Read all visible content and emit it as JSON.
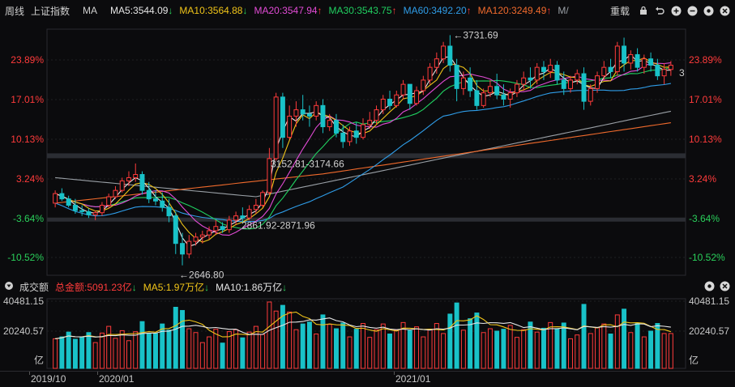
{
  "toolbar": {
    "period": "周线",
    "index_name": "上证指数",
    "ma_label": "MA",
    "ma": [
      {
        "label": "MA5:3544.09",
        "arrow": "↓",
        "cls": "ma5",
        "arrow_cls": "dn"
      },
      {
        "label": "MA10:3564.88",
        "arrow": "↓",
        "cls": "ma10",
        "arrow_cls": "dn"
      },
      {
        "label": "MA20:3547.94",
        "arrow": "↑",
        "cls": "ma20",
        "arrow_cls": "up"
      },
      {
        "label": "MA30:3543.75",
        "arrow": "↑",
        "cls": "ma30",
        "arrow_cls": "up"
      },
      {
        "label": "MA60:3492.20",
        "arrow": "↑",
        "cls": "ma60",
        "arrow_cls": "up"
      },
      {
        "label": "MA120:3249.49",
        "arrow": "↑",
        "cls": "ma120",
        "arrow_cls": "up"
      },
      {
        "label": "M/",
        "arrow": "",
        "cls": "ma250",
        "arrow_cls": "up"
      }
    ],
    "reset_label": "重载"
  },
  "price_axis": {
    "ticks": [
      "23.89%",
      "17.01%",
      "10.13%",
      "3.24%",
      "-3.64%",
      "-10.52%"
    ],
    "tick_colors": [
      "#ff3b3b",
      "#ff3b3b",
      "#ff3b3b",
      "#ff3b3b",
      "#2ad05b",
      "#2ad05b"
    ]
  },
  "annotations": {
    "high": "3731.69",
    "low": "2646.80",
    "gap_upper": "3152.81-3174.66",
    "gap_lower": "2861.92-2871.96",
    "last_marker": "3"
  },
  "volume": {
    "label": "成交额",
    "total": "总金额:5091.23亿",
    "total_arrow": "↓",
    "ma5": "MA5:1.97万亿",
    "ma5_arrow": "↓",
    "ma10": "MA10:1.86万亿",
    "ma10_arrow": "↓",
    "ticks": [
      "40481.15",
      "20240.57",
      "亿"
    ]
  },
  "x_axis": {
    "labels": [
      "2019/10",
      "2020/01",
      "2021/01"
    ]
  },
  "colors": {
    "up": "#ff3b3b",
    "down": "#19c2c8",
    "ma5": "#e6e6e6",
    "ma10": "#f0c419",
    "ma20": "#e24bd6",
    "ma30": "#20d060",
    "ma60": "#2f9de8",
    "ma120": "#f06a2c",
    "ma250": "#9aa0a6"
  },
  "chart_data": {
    "type": "candlestick",
    "weekly_ohlc": [
      [
        2940,
        3000,
        2920,
        2985
      ],
      [
        2985,
        3010,
        2950,
        2960
      ],
      [
        2960,
        2975,
        2920,
        2930
      ],
      [
        2930,
        2960,
        2890,
        2905
      ],
      [
        2905,
        2930,
        2880,
        2900
      ],
      [
        2900,
        2915,
        2870,
        2885
      ],
      [
        2885,
        2905,
        2860,
        2895
      ],
      [
        2895,
        2945,
        2880,
        2930
      ],
      [
        2930,
        2985,
        2915,
        2970
      ],
      [
        2970,
        3020,
        2960,
        3000
      ],
      [
        3000,
        3060,
        2990,
        3045
      ],
      [
        3045,
        3090,
        3020,
        3060
      ],
      [
        3060,
        3127,
        3040,
        3075
      ],
      [
        3075,
        3090,
        2980,
        3000
      ],
      [
        3000,
        3040,
        2940,
        2960
      ],
      [
        2960,
        3000,
        2930,
        2950
      ],
      [
        2950,
        2990,
        2900,
        2920
      ],
      [
        2920,
        2960,
        2850,
        2880
      ],
      [
        2880,
        2900,
        2700,
        2750
      ],
      [
        2750,
        2800,
        2646.8,
        2700
      ],
      [
        2700,
        2790,
        2680,
        2760
      ],
      [
        2760,
        2800,
        2740,
        2780
      ],
      [
        2780,
        2810,
        2750,
        2790
      ],
      [
        2790,
        2830,
        2770,
        2810
      ],
      [
        2810,
        2860,
        2790,
        2830
      ],
      [
        2830,
        2850,
        2800,
        2815
      ],
      [
        2815,
        2880,
        2800,
        2860
      ],
      [
        2860,
        2900,
        2840,
        2880
      ],
      [
        2880,
        2920,
        2850,
        2870
      ],
      [
        2870,
        2930,
        2860,
        2910
      ],
      [
        2910,
        2960,
        2890,
        2930
      ],
      [
        2930,
        3000,
        2920,
        2990
      ],
      [
        2990,
        3200,
        2980,
        3150
      ],
      [
        3150,
        3460,
        3140,
        3440
      ],
      [
        3440,
        3460,
        3200,
        3250
      ],
      [
        3250,
        3400,
        3240,
        3350
      ],
      [
        3350,
        3420,
        3300,
        3380
      ],
      [
        3380,
        3450,
        3330,
        3360
      ],
      [
        3360,
        3400,
        3300,
        3350
      ],
      [
        3350,
        3420,
        3330,
        3400
      ],
      [
        3400,
        3430,
        3270,
        3300
      ],
      [
        3300,
        3360,
        3280,
        3330
      ],
      [
        3330,
        3360,
        3250,
        3270
      ],
      [
        3270,
        3310,
        3200,
        3230
      ],
      [
        3230,
        3300,
        3210,
        3280
      ],
      [
        3280,
        3320,
        3220,
        3250
      ],
      [
        3250,
        3340,
        3240,
        3310
      ],
      [
        3310,
        3370,
        3290,
        3330
      ],
      [
        3330,
        3400,
        3310,
        3380
      ],
      [
        3380,
        3450,
        3360,
        3430
      ],
      [
        3430,
        3470,
        3380,
        3400
      ],
      [
        3400,
        3470,
        3390,
        3450
      ],
      [
        3450,
        3520,
        3430,
        3500
      ],
      [
        3500,
        3480,
        3380,
        3410
      ],
      [
        3410,
        3490,
        3400,
        3470
      ],
      [
        3470,
        3540,
        3450,
        3520
      ],
      [
        3520,
        3600,
        3500,
        3580
      ],
      [
        3580,
        3650,
        3550,
        3620
      ],
      [
        3620,
        3700,
        3600,
        3680
      ],
      [
        3680,
        3731.69,
        3560,
        3590
      ],
      [
        3590,
        3620,
        3420,
        3480
      ],
      [
        3480,
        3560,
        3450,
        3530
      ],
      [
        3530,
        3580,
        3440,
        3470
      ],
      [
        3470,
        3520,
        3380,
        3400
      ],
      [
        3400,
        3480,
        3390,
        3460
      ],
      [
        3460,
        3520,
        3440,
        3490
      ],
      [
        3490,
        3550,
        3430,
        3450
      ],
      [
        3450,
        3500,
        3400,
        3430
      ],
      [
        3430,
        3480,
        3390,
        3460
      ],
      [
        3460,
        3520,
        3440,
        3500
      ],
      [
        3500,
        3560,
        3470,
        3530
      ],
      [
        3530,
        3580,
        3480,
        3520
      ],
      [
        3520,
        3600,
        3500,
        3580
      ],
      [
        3580,
        3610,
        3520,
        3560
      ],
      [
        3560,
        3620,
        3530,
        3590
      ],
      [
        3590,
        3610,
        3500,
        3520
      ],
      [
        3520,
        3560,
        3450,
        3480
      ],
      [
        3480,
        3540,
        3460,
        3520
      ],
      [
        3520,
        3570,
        3500,
        3550
      ],
      [
        3550,
        3580,
        3380,
        3420
      ],
      [
        3420,
        3500,
        3400,
        3480
      ],
      [
        3480,
        3560,
        3460,
        3540
      ],
      [
        3540,
        3610,
        3520,
        3580
      ],
      [
        3580,
        3620,
        3530,
        3560
      ],
      [
        3560,
        3700,
        3540,
        3680
      ],
      [
        3680,
        3720,
        3560,
        3600
      ],
      [
        3600,
        3660,
        3570,
        3640
      ],
      [
        3640,
        3670,
        3560,
        3580
      ],
      [
        3580,
        3640,
        3550,
        3620
      ],
      [
        3620,
        3650,
        3560,
        3590
      ],
      [
        3590,
        3620,
        3520,
        3540
      ],
      [
        3540,
        3600,
        3500,
        3570
      ],
      [
        3570,
        3610,
        3540,
        3590
      ]
    ],
    "ma_last": {
      "MA5": 3544.09,
      "MA10": 3564.88,
      "MA20": 3547.94,
      "MA30": 3543.75,
      "MA60": 3492.2,
      "MA120": 3249.49
    },
    "high": 3731.69,
    "low": 2646.8,
    "y_ticks_pct": [
      "23.89%",
      "17.01%",
      "10.13%",
      "3.24%",
      "-3.64%",
      "-10.52%"
    ],
    "x_labels": [
      "2019/10",
      "2020/01",
      "2021/01"
    ],
    "volume_ticks": [
      "40481.15",
      "20240.57"
    ]
  }
}
